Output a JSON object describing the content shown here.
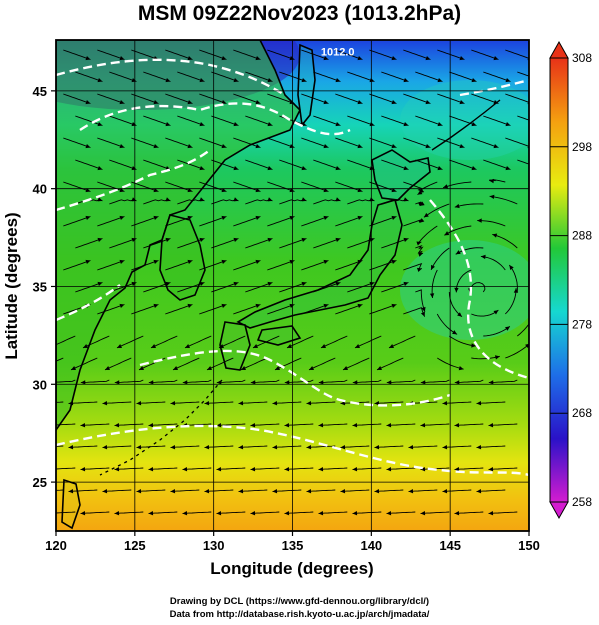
{
  "title": "MSM 09Z22Nov2023 (1013.2hPa)",
  "map": {
    "lon_range": [
      120,
      150
    ],
    "lat_range": [
      22.5,
      47.6
    ],
    "lon_ticks": [
      120,
      125,
      130,
      135,
      140,
      145,
      150
    ],
    "lat_ticks": [
      25,
      30,
      35,
      40,
      45
    ],
    "xlabel": "Longitude (degrees)",
    "ylabel": "Latitude  (degrees)",
    "contour_label": "1012.0",
    "contour_label_lonlat": [
      136.8,
      46.8
    ]
  },
  "colorbar": {
    "min": 258,
    "max": 308,
    "ticks": [
      258,
      268,
      278,
      288,
      298,
      308
    ],
    "stops": [
      "#d41cd0",
      "#2a12c8",
      "#1e6ee8",
      "#16d8d0",
      "#22c838",
      "#e8ec10",
      "#f4a010",
      "#e83218"
    ]
  },
  "credits": {
    "line1": "Drawing by DCL (https://www.gfd-dennou.org/library/dcl/)",
    "line2": "Data from http://database.rish.kyoto-u.ac.jp/arch/jmadata/"
  }
}
